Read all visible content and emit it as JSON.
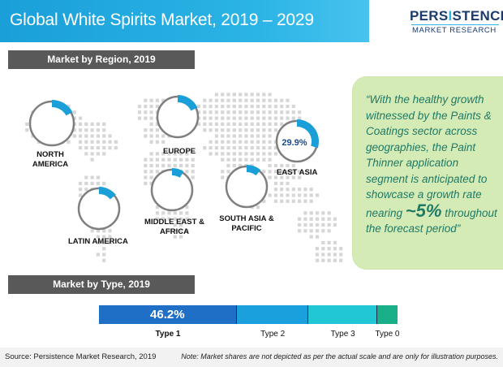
{
  "header": {
    "title": "Global White Spirits Market, 2019 – 2029",
    "logo_top_a": "PERS",
    "logo_top_i": "I",
    "logo_top_b": "STENCE",
    "logo_bottom": "MARKET RESEARCH"
  },
  "region_section": {
    "heading": "Market by Region, 2019",
    "regions": [
      {
        "key": "north_america",
        "label_line1": "NORTH",
        "label_line2": "AMERICA",
        "share_value": null
      },
      {
        "key": "europe",
        "label_line1": "EUROPE",
        "label_line2": "",
        "share_value": null
      },
      {
        "key": "east_asia",
        "label_line1": "EAST ASIA",
        "label_line2": "",
        "share_value": "29.9%"
      },
      {
        "key": "latin_america",
        "label_line1": "LATIN AMERICA",
        "label_line2": "",
        "share_value": null
      },
      {
        "key": "middle_east_africa",
        "label_line1": "MIDDLE EAST &",
        "label_line2": "AFRICA",
        "share_value": null
      },
      {
        "key": "south_asia_pacific",
        "label_line1": "SOUTH ASIA &",
        "label_line2": "PACIFIC",
        "share_value": null
      }
    ],
    "ring_colors": {
      "track": "#7f7f7f",
      "arc": "#1a9fd8"
    }
  },
  "quote": {
    "text_before": "“With the healthy growth witnessed by the Paints & Coatings sector across geographies, the Paint Thinner application segment is anticipated to showcase a growth rate nearing ",
    "highlight": "~5%",
    "text_after": " throughout the forecast period”"
  },
  "type_section": {
    "heading": "Market by Type, 2019",
    "segments": [
      {
        "label": "Type 1",
        "value_text": "46.2%",
        "share": 0.462,
        "color": "#1f6fc7"
      },
      {
        "label": "Type 2",
        "value_text": "",
        "share": 0.24,
        "color": "#1aa0dc"
      },
      {
        "label": "Type 3",
        "value_text": "",
        "share": 0.23,
        "color": "#22c7d6"
      },
      {
        "label": "Type 0",
        "value_text": "",
        "share": 0.068,
        "color": "#19b089"
      }
    ]
  },
  "footer": {
    "source": "Source: Persistence Market Research, 2019",
    "note": "Note: Market shares are not depicted as per the actual scale and are only for illustration purposes."
  }
}
